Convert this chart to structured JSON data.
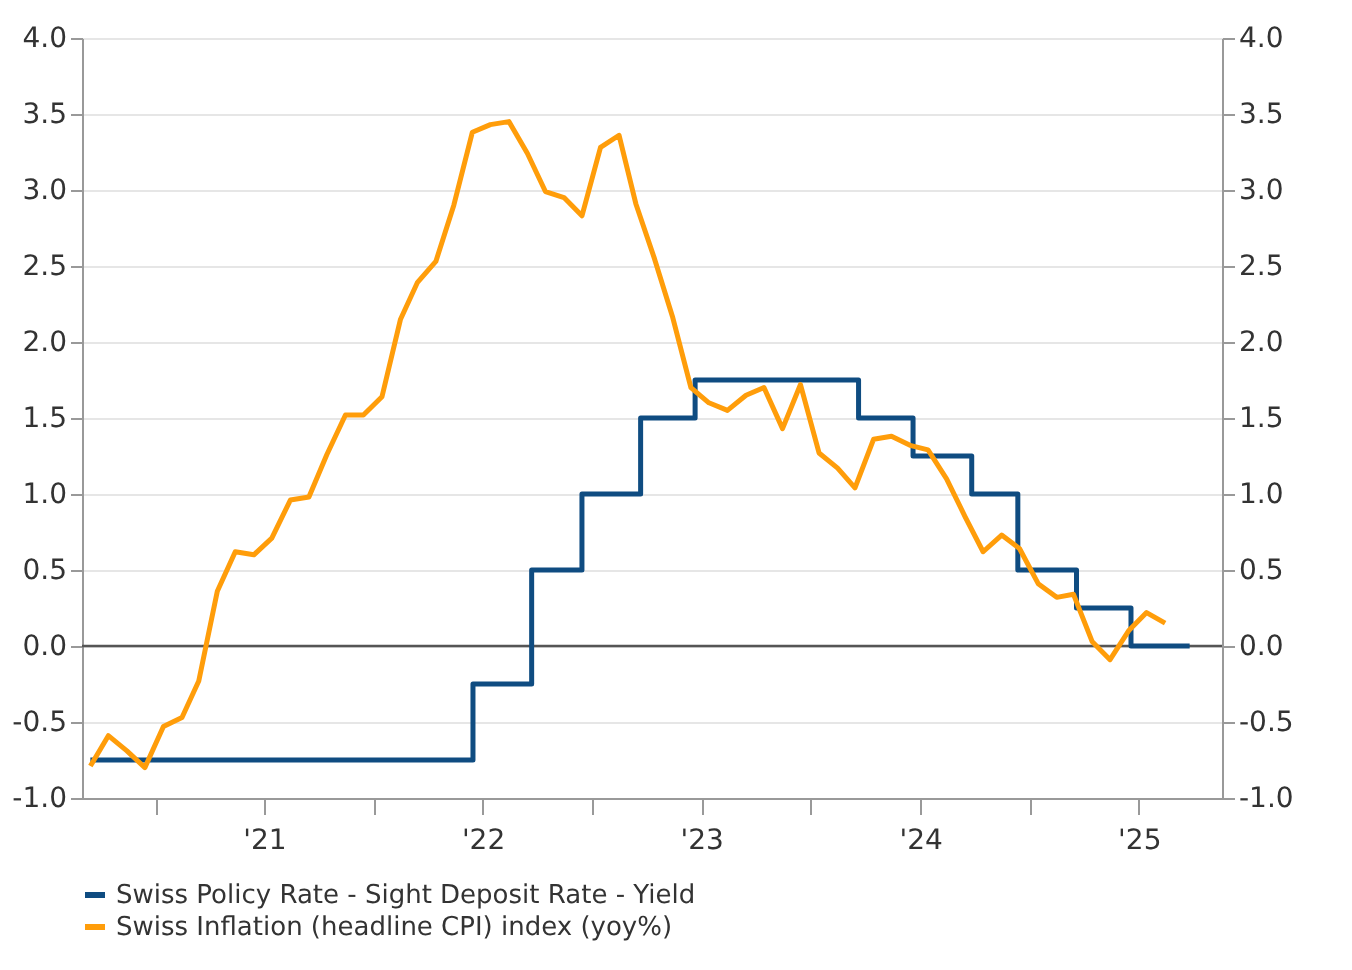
{
  "chart_data": {
    "type": "line",
    "xlim": [
      "2020-09-01",
      "2025-11-18"
    ],
    "xticks": [
      {
        "value": "2021-01-01",
        "label": null
      },
      {
        "value": "2021-07-02",
        "label": "'21"
      },
      {
        "value": "2022-01-01",
        "label": null
      },
      {
        "value": "2022-07-02",
        "label": "'22"
      },
      {
        "value": "2023-01-01",
        "label": null
      },
      {
        "value": "2023-07-02",
        "label": "'23"
      },
      {
        "value": "2024-01-01",
        "label": null
      },
      {
        "value": "2024-07-02",
        "label": "'24"
      },
      {
        "value": "2025-01-01",
        "label": null
      },
      {
        "value": "2025-07-02",
        "label": "'25"
      }
    ],
    "ylim": [
      -1,
      4
    ],
    "yticks": [
      {
        "value": -1,
        "label": "-1.0"
      },
      {
        "value": -0.5,
        "label": "-0.5"
      },
      {
        "value": 0,
        "label": "0.0"
      },
      {
        "value": 0.5,
        "label": "0.5"
      },
      {
        "value": 1,
        "label": "1.0"
      },
      {
        "value": 1.5,
        "label": "1.5"
      },
      {
        "value": 2,
        "label": "2.0"
      },
      {
        "value": 2.5,
        "label": "2.5"
      },
      {
        "value": 3,
        "label": "3.0"
      },
      {
        "value": 3.5,
        "label": "3.5"
      },
      {
        "value": 4,
        "label": "4.0"
      }
    ],
    "y2lim": [
      -1,
      4
    ],
    "y2ticks": [
      {
        "value": -1,
        "label": "-1.0"
      },
      {
        "value": -0.5,
        "label": "-0.5"
      },
      {
        "value": 0,
        "label": "0.0"
      },
      {
        "value": 0.5,
        "label": "0.5"
      },
      {
        "value": 1,
        "label": "1.0"
      },
      {
        "value": 1.5,
        "label": "1.5"
      },
      {
        "value": 2,
        "label": "2.0"
      },
      {
        "value": 2.5,
        "label": "2.5"
      },
      {
        "value": 3,
        "label": "3.0"
      },
      {
        "value": 3.5,
        "label": "3.5"
      },
      {
        "value": 4,
        "label": "4.0"
      }
    ],
    "grid": "y",
    "legend": "bottom",
    "line_style": "solid",
    "ref_lines": [
      {
        "axis": "y",
        "value": 0,
        "color": "#555555"
      }
    ],
    "series": [
      {
        "name": "Swiss Policy Rate - Sight Deposit Rate - Yield",
        "type": "step",
        "color": "#0f4c81",
        "x": [
          "2020-09-15",
          "2022-06-16",
          "2022-09-22",
          "2022-12-15",
          "2023-03-23",
          "2023-06-22",
          "2024-03-21",
          "2024-06-20",
          "2024-09-26",
          "2024-12-12",
          "2025-03-20",
          "2025-06-19",
          "2025-09-25"
        ],
        "values": [
          -0.75,
          -0.25,
          0.5,
          1.0,
          1.5,
          1.75,
          1.5,
          1.25,
          1.0,
          0.5,
          0.25,
          0.0,
          0.0
        ]
      },
      {
        "name": "Swiss Inflation (headline CPI) index (yoy%)",
        "type": "line",
        "color": "#ff9d0a",
        "x": [
          "2020-09-15",
          "2020-10-15",
          "2020-11-15",
          "2020-12-15",
          "2021-01-15",
          "2021-02-15",
          "2021-03-15",
          "2021-04-15",
          "2021-05-15",
          "2021-06-15",
          "2021-07-15",
          "2021-08-15",
          "2021-09-15",
          "2021-10-15",
          "2021-11-15",
          "2021-12-15",
          "2022-01-15",
          "2022-02-15",
          "2022-03-15",
          "2022-04-15",
          "2022-05-15",
          "2022-06-15",
          "2022-07-15",
          "2022-08-15",
          "2022-09-15",
          "2022-10-15",
          "2022-11-15",
          "2022-12-15",
          "2023-01-15",
          "2023-02-15",
          "2023-03-15",
          "2023-04-15",
          "2023-05-15",
          "2023-06-15",
          "2023-07-15",
          "2023-08-15",
          "2023-09-15",
          "2023-10-15",
          "2023-11-15",
          "2023-12-15",
          "2024-01-15",
          "2024-02-15",
          "2024-03-15",
          "2024-04-15",
          "2024-05-15",
          "2024-06-15",
          "2024-07-15",
          "2024-08-15",
          "2024-09-15",
          "2024-10-15",
          "2024-11-15",
          "2024-12-15",
          "2025-01-15",
          "2025-02-15",
          "2025-03-15",
          "2025-04-15",
          "2025-05-15",
          "2025-06-15",
          "2025-07-15",
          "2025-08-15"
        ],
        "values": [
          -0.79,
          -0.59,
          -0.69,
          -0.8,
          -0.53,
          -0.47,
          -0.23,
          0.36,
          0.62,
          0.6,
          0.71,
          0.96,
          0.98,
          1.26,
          1.52,
          1.52,
          1.64,
          2.15,
          2.39,
          2.53,
          2.9,
          3.38,
          3.43,
          3.45,
          3.24,
          2.99,
          2.95,
          2.83,
          3.28,
          3.36,
          2.91,
          2.55,
          2.17,
          1.7,
          1.6,
          1.55,
          1.65,
          1.7,
          1.43,
          1.72,
          1.27,
          1.17,
          1.04,
          1.36,
          1.38,
          1.32,
          1.29,
          1.1,
          0.85,
          0.62,
          0.73,
          0.64,
          0.41,
          0.32,
          0.34,
          0.03,
          -0.09,
          0.1,
          0.22,
          0.15
        ]
      }
    ]
  }
}
